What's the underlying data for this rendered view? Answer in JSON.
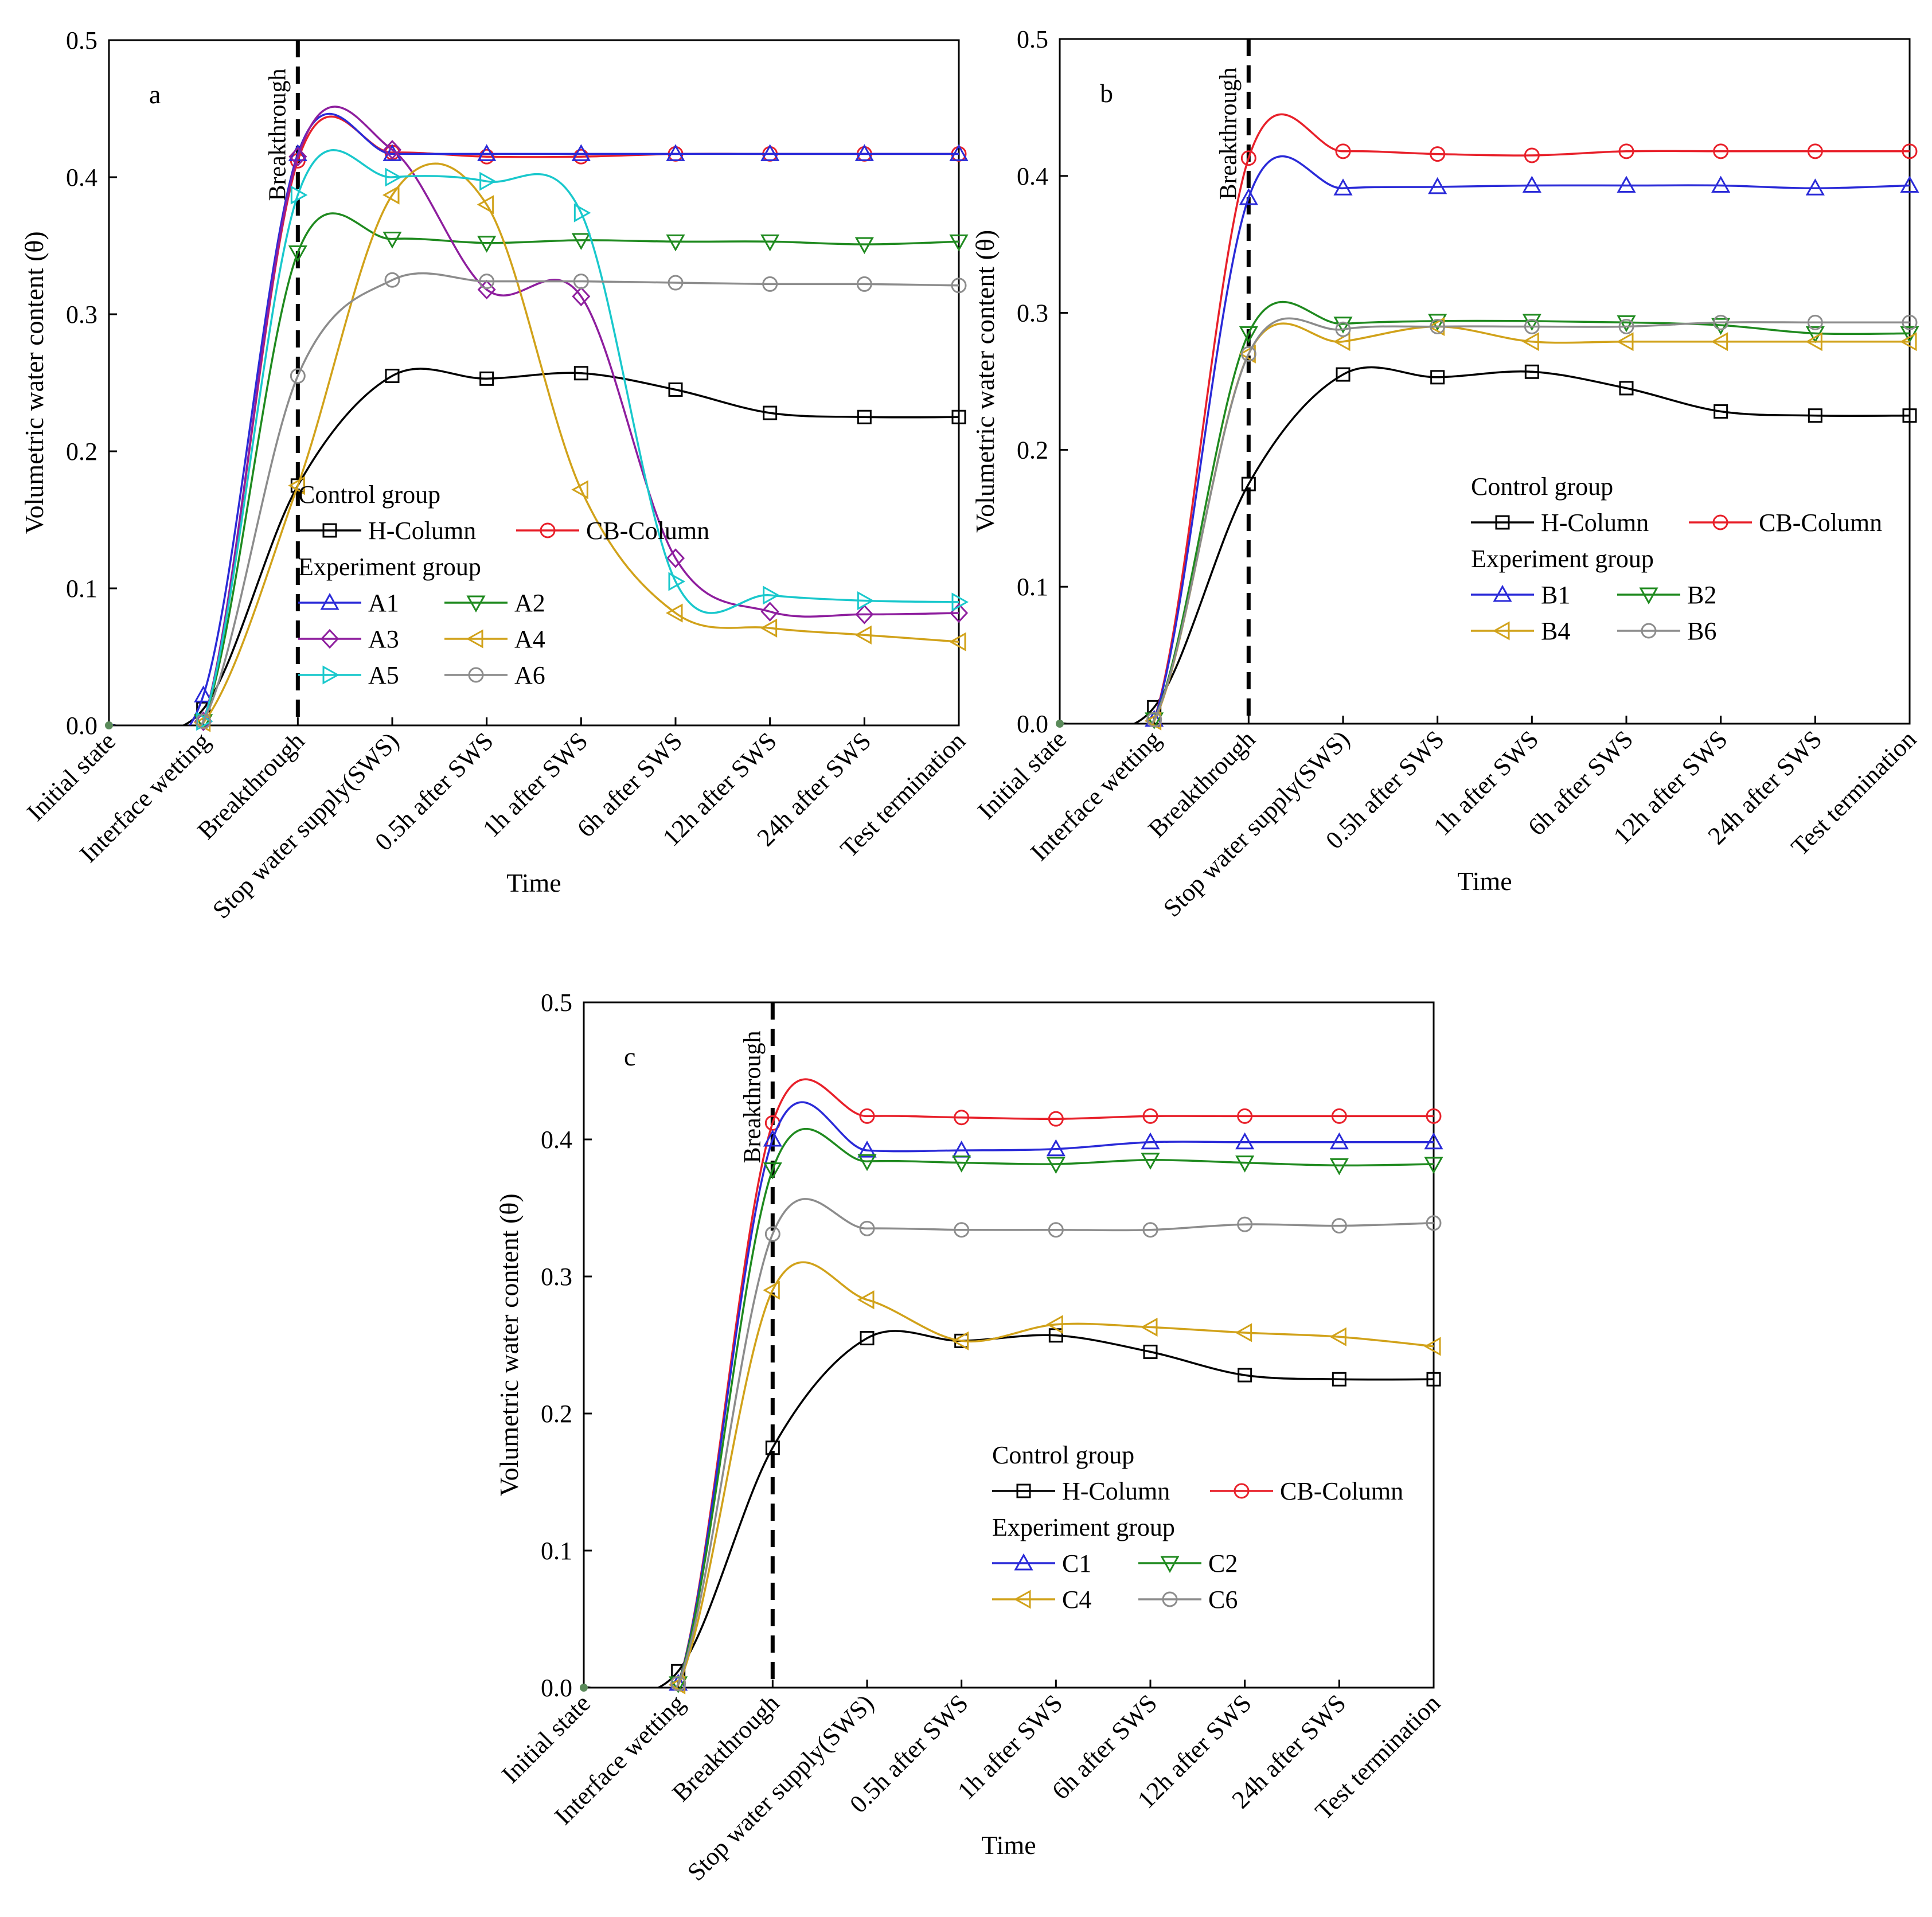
{
  "chart_data": [
    {
      "panel": "a",
      "type": "line",
      "categories": [
        "Initial state",
        "Interface wetting",
        "Breakthrough",
        "Stop water supply(SWS)",
        "0.5h after SWS",
        "1h after SWS",
        "6h after SWS",
        "12h after SWS",
        "24h after SWS",
        "Test termination"
      ],
      "xlabel": "Time",
      "ylabel": "Volumetric water content (θ)",
      "ylim": [
        0,
        0.5
      ],
      "yticks": [
        "0.0",
        "0.1",
        "0.2",
        "0.3",
        "0.4",
        "0.5"
      ],
      "breakthrough_label": "Breakthrough",
      "legend": {
        "control_title": "Control group",
        "experiment_title": "Experiment group",
        "placement": "lower-center"
      },
      "series": [
        {
          "name": "H-Column",
          "group": "control",
          "marker": "square",
          "color": "#000000",
          "values": [
            0,
            0.012,
            0.175,
            0.255,
            0.253,
            0.257,
            0.245,
            0.228,
            0.225,
            0.225
          ]
        },
        {
          "name": "CB-Column",
          "group": "control",
          "marker": "circle",
          "color": "#e8202a",
          "values": [
            0,
            0.003,
            0.412,
            0.418,
            0.415,
            0.415,
            0.417,
            0.417,
            0.417,
            0.417
          ]
        },
        {
          "name": "A1",
          "group": "experiment",
          "marker": "triangle-up",
          "color": "#2a2ad8",
          "values": [
            0,
            0.022,
            0.417,
            0.417,
            0.417,
            0.417,
            0.417,
            0.417,
            0.417,
            0.417
          ]
        },
        {
          "name": "A2",
          "group": "experiment",
          "marker": "triangle-down",
          "color": "#1f8a1f",
          "values": [
            0,
            0.003,
            0.345,
            0.355,
            0.352,
            0.354,
            0.353,
            0.353,
            0.351,
            0.353
          ]
        },
        {
          "name": "A3",
          "group": "experiment",
          "marker": "diamond",
          "color": "#8e1e9e",
          "values": [
            0,
            0.003,
            0.415,
            0.42,
            0.318,
            0.313,
            0.122,
            0.083,
            0.081,
            0.082
          ]
        },
        {
          "name": "A4",
          "group": "experiment",
          "marker": "triangle-left",
          "color": "#d1a21a",
          "values": [
            0,
            0.002,
            0.175,
            0.387,
            0.38,
            0.172,
            0.082,
            0.071,
            0.066,
            0.061
          ]
        },
        {
          "name": "A5",
          "group": "experiment",
          "marker": "triangle-right",
          "color": "#19c8cc",
          "values": [
            0,
            0.003,
            0.387,
            0.4,
            0.397,
            0.374,
            0.105,
            0.095,
            0.091,
            0.09
          ]
        },
        {
          "name": "A6",
          "group": "experiment",
          "marker": "circle",
          "color": "#8c8c8c",
          "values": [
            0,
            0.003,
            0.255,
            0.325,
            0.324,
            0.324,
            0.323,
            0.322,
            0.322,
            0.321
          ]
        }
      ]
    },
    {
      "panel": "b",
      "type": "line",
      "categories": [
        "Initial state",
        "Interface wetting",
        "Breakthrough",
        "Stop water supply(SWS)",
        "0.5h after SWS",
        "1h after SWS",
        "6h after SWS",
        "12h after SWS",
        "24h after SWS",
        "Test termination"
      ],
      "xlabel": "Time",
      "ylabel": "Volumetric water content (θ)",
      "ylim": [
        0,
        0.5
      ],
      "yticks": [
        "0.0",
        "0.1",
        "0.2",
        "0.3",
        "0.4",
        "0.5"
      ],
      "breakthrough_label": "Breakthrough",
      "legend": {
        "control_title": "Control group",
        "experiment_title": "Experiment group",
        "placement": "lower-right"
      },
      "series": [
        {
          "name": "H-Column",
          "group": "control",
          "marker": "square",
          "color": "#000000",
          "values": [
            0,
            0.012,
            0.175,
            0.255,
            0.253,
            0.257,
            0.245,
            0.228,
            0.225,
            0.225
          ]
        },
        {
          "name": "CB-Column",
          "group": "control",
          "marker": "circle",
          "color": "#e8202a",
          "values": [
            0,
            0.003,
            0.413,
            0.418,
            0.416,
            0.415,
            0.418,
            0.418,
            0.418,
            0.418
          ]
        },
        {
          "name": "B1",
          "group": "experiment",
          "marker": "triangle-up",
          "color": "#2a2ad8",
          "values": [
            0,
            0.003,
            0.384,
            0.391,
            0.392,
            0.393,
            0.393,
            0.393,
            0.391,
            0.393
          ]
        },
        {
          "name": "B2",
          "group": "experiment",
          "marker": "triangle-down",
          "color": "#1f8a1f",
          "values": [
            0,
            0.003,
            0.285,
            0.292,
            0.294,
            0.294,
            0.293,
            0.291,
            0.285,
            0.285
          ]
        },
        {
          "name": "B4",
          "group": "experiment",
          "marker": "triangle-left",
          "color": "#d1a21a",
          "values": [
            0,
            0.002,
            0.27,
            0.279,
            0.29,
            0.279,
            0.279,
            0.279,
            0.279,
            0.279
          ]
        },
        {
          "name": "B6",
          "group": "experiment",
          "marker": "circle",
          "color": "#8c8c8c",
          "values": [
            0,
            0.003,
            0.27,
            0.288,
            0.29,
            0.29,
            0.29,
            0.293,
            0.293,
            0.293
          ]
        }
      ]
    },
    {
      "panel": "c",
      "type": "line",
      "categories": [
        "Initial state",
        "Interface wetting",
        "Breakthrough",
        "Stop water supply(SWS)",
        "0.5h after SWS",
        "1h after SWS",
        "6h after SWS",
        "12h after SWS",
        "24h after SWS",
        "Test termination"
      ],
      "xlabel": "Time",
      "ylabel": "Volumetric water content (θ)",
      "ylim": [
        0,
        0.5
      ],
      "yticks": [
        "0.0",
        "0.1",
        "0.2",
        "0.3",
        "0.4",
        "0.5"
      ],
      "breakthrough_label": "Breakthrough",
      "legend": {
        "control_title": "Control group",
        "experiment_title": "Experiment group",
        "placement": "lower-right"
      },
      "series": [
        {
          "name": "H-Column",
          "group": "control",
          "marker": "square",
          "color": "#000000",
          "values": [
            0,
            0.012,
            0.175,
            0.255,
            0.253,
            0.257,
            0.245,
            0.228,
            0.225,
            0.225
          ]
        },
        {
          "name": "CB-Column",
          "group": "control",
          "marker": "circle",
          "color": "#e8202a",
          "values": [
            0,
            0.003,
            0.412,
            0.417,
            0.416,
            0.415,
            0.417,
            0.417,
            0.417,
            0.417
          ]
        },
        {
          "name": "C1",
          "group": "experiment",
          "marker": "triangle-up",
          "color": "#2a2ad8",
          "values": [
            0,
            0.003,
            0.4,
            0.392,
            0.392,
            0.393,
            0.398,
            0.398,
            0.398,
            0.398
          ]
        },
        {
          "name": "C2",
          "group": "experiment",
          "marker": "triangle-down",
          "color": "#1f8a1f",
          "values": [
            0,
            0.003,
            0.378,
            0.384,
            0.383,
            0.382,
            0.385,
            0.383,
            0.381,
            0.382
          ]
        },
        {
          "name": "C4",
          "group": "experiment",
          "marker": "triangle-left",
          "color": "#d1a21a",
          "values": [
            0,
            0.002,
            0.29,
            0.283,
            0.253,
            0.265,
            0.263,
            0.259,
            0.256,
            0.249
          ]
        },
        {
          "name": "C6",
          "group": "experiment",
          "marker": "circle",
          "color": "#8c8c8c",
          "values": [
            0,
            0.003,
            0.331,
            0.335,
            0.334,
            0.334,
            0.334,
            0.338,
            0.337,
            0.339
          ]
        }
      ]
    }
  ]
}
